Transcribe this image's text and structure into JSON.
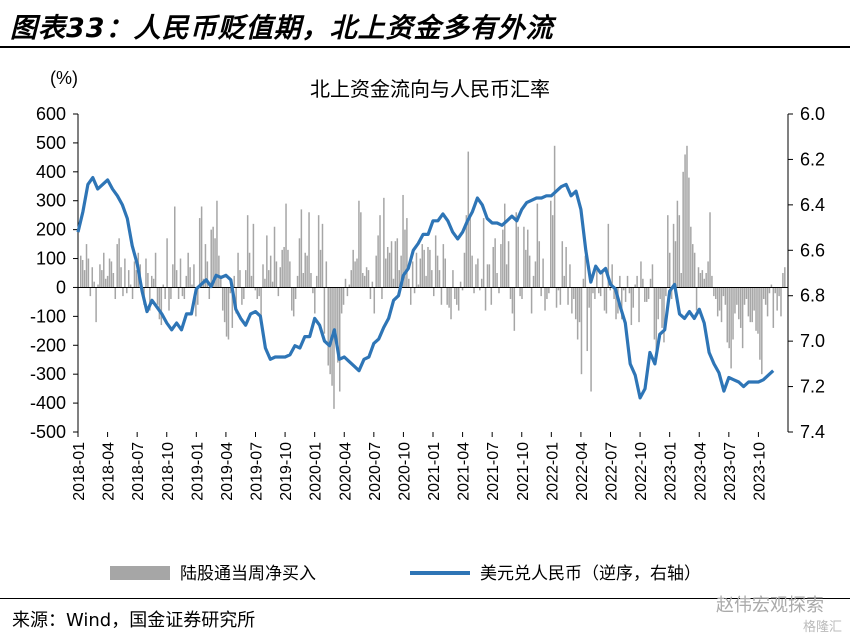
{
  "figure": {
    "title": "图表33：人民币贬值期，北上资金多有外流",
    "source": "来源：Wind，国金证券研究所",
    "watermark": "赵伟宏观探索",
    "watermark_sub": "格隆汇"
  },
  "colors": {
    "bars": "#a6a6a6",
    "line": "#2e75b6",
    "axis": "#000000"
  },
  "chart_data": {
    "type": "bar+line",
    "title": "北上资金流向与人民币汇率",
    "left_unit": "(%)",
    "left_ylim": [
      -500,
      600
    ],
    "left_ticks": [
      600,
      500,
      400,
      300,
      200,
      100,
      0,
      -100,
      -200,
      -300,
      -400,
      -500
    ],
    "right_ylim_inverted": [
      6.0,
      7.4
    ],
    "right_ticks": [
      "6.0",
      "6.2",
      "6.4",
      "6.6",
      "6.8",
      "7.0",
      "7.2",
      "7.4"
    ],
    "x_ticks": [
      "2018-01",
      "2018-04",
      "2018-07",
      "2018-10",
      "2019-01",
      "2019-04",
      "2019-07",
      "2019-10",
      "2020-01",
      "2020-04",
      "2020-07",
      "2020-10",
      "2021-01",
      "2021-04",
      "2021-07",
      "2021-10",
      "2022-01",
      "2022-04",
      "2022-07",
      "2022-10",
      "2023-01",
      "2023-04",
      "2023-07",
      "2023-10"
    ],
    "legend_position": "bottom",
    "series": [
      {
        "name": "陆股通当周净买入",
        "axis": "left",
        "kind": "bar",
        "frequency": "weekly",
        "values": [
          110,
          95,
          60,
          150,
          100,
          -30,
          70,
          20,
          -120,
          10,
          80,
          60,
          120,
          30,
          40,
          100,
          90,
          50,
          -40,
          150,
          170,
          70,
          -30,
          100,
          -20,
          60,
          10,
          -40,
          90,
          60,
          120,
          80,
          0,
          -60,
          100,
          50,
          -80,
          40,
          30,
          120,
          -60,
          -110,
          -130,
          10,
          -40,
          170,
          -80,
          -40,
          80,
          280,
          60,
          -40,
          100,
          -30,
          -40,
          40,
          120,
          70,
          10,
          80,
          -100,
          -60,
          240,
          280,
          30,
          150,
          90,
          -40,
          200,
          210,
          170,
          300,
          110,
          40,
          -80,
          -120,
          -170,
          -180,
          -20,
          -140,
          40,
          -90,
          120,
          60,
          -60,
          -40,
          60,
          250,
          120,
          40,
          220,
          -10,
          -40,
          -30,
          -100,
          80,
          30,
          180,
          60,
          110,
          20,
          210,
          90,
          -30,
          70,
          130,
          140,
          290,
          130,
          90,
          -80,
          -100,
          -40,
          40,
          170,
          270,
          50,
          120,
          110,
          260,
          50,
          -20,
          -90,
          40,
          250,
          130,
          220,
          -160,
          90,
          -270,
          -300,
          -340,
          -420,
          -180,
          -260,
          -360,
          -90,
          -60,
          30,
          -30,
          10,
          60,
          130,
          90,
          100,
          300,
          260,
          50,
          40,
          70,
          60,
          -40,
          20,
          -90,
          110,
          180,
          250,
          -40,
          310,
          100,
          140,
          120,
          160,
          30,
          160,
          170,
          60,
          110,
          320,
          200,
          240,
          30,
          -60,
          90,
          -20,
          120,
          10,
          100,
          150,
          130,
          40,
          140,
          130,
          60,
          -30,
          180,
          110,
          60,
          -60,
          150,
          100,
          -60,
          -70,
          -110,
          60,
          -40,
          -60,
          -80,
          20,
          -10,
          120,
          250,
          470,
          240,
          110,
          -20,
          80,
          100,
          -10,
          30,
          240,
          -80,
          80,
          80,
          -60,
          140,
          170,
          50,
          -20,
          150,
          200,
          290,
          80,
          160,
          -40,
          -90,
          -150,
          260,
          210,
          -30,
          -40,
          210,
          130,
          200,
          110,
          -90,
          40,
          90,
          290,
          160,
          -30,
          100,
          -80,
          -40,
          -20,
          300,
          250,
          490,
          -70,
          -10,
          -60,
          160,
          40,
          140,
          -60,
          80,
          -90,
          -40,
          -110,
          -180,
          -120,
          -300,
          30,
          110,
          -220,
          -70,
          -360,
          -20,
          -40,
          60,
          -20,
          -30,
          50,
          -80,
          -90,
          220,
          -10,
          80,
          -40,
          -110,
          -90,
          40,
          -110,
          -10,
          -50,
          40,
          -20,
          -130,
          -70,
          10,
          40,
          -120,
          90,
          30,
          -50,
          -50,
          -40,
          30,
          80,
          -180,
          -220,
          -110,
          -40,
          -140,
          -190,
          -30,
          250,
          120,
          -40,
          220,
          160,
          300,
          250,
          50,
          400,
          460,
          490,
          380,
          210,
          150,
          120,
          -80,
          70,
          50,
          60,
          30,
          50,
          90,
          260,
          40,
          -30,
          -40,
          -100,
          -80,
          -120,
          -30,
          -60,
          -190,
          -210,
          -280,
          -180,
          -90,
          -60,
          -110,
          -140,
          -210,
          -60,
          -40,
          -100,
          -120,
          -120,
          -80,
          -150,
          -160,
          -250,
          -300,
          -40,
          -60,
          -100,
          -20,
          10,
          -140,
          -20,
          -80,
          -30,
          -100,
          50,
          70
        ]
      },
      {
        "name": "美元兑人民币（逆序，右轴）",
        "axis": "right",
        "kind": "line",
        "points": [
          [
            "2018-01",
            6.52
          ],
          [
            "2018-01",
            6.43
          ],
          [
            "2018-02",
            6.31
          ],
          [
            "2018-02",
            6.28
          ],
          [
            "2018-03",
            6.33
          ],
          [
            "2018-03",
            6.31
          ],
          [
            "2018-04",
            6.29
          ],
          [
            "2018-04",
            6.33
          ],
          [
            "2018-05",
            6.36
          ],
          [
            "2018-05",
            6.4
          ],
          [
            "2018-06",
            6.46
          ],
          [
            "2018-06",
            6.58
          ],
          [
            "2018-07",
            6.66
          ],
          [
            "2018-07",
            6.78
          ],
          [
            "2018-08",
            6.87
          ],
          [
            "2018-08",
            6.82
          ],
          [
            "2018-09",
            6.85
          ],
          [
            "2018-09",
            6.88
          ],
          [
            "2018-10",
            6.92
          ],
          [
            "2018-10",
            6.95
          ],
          [
            "2018-11",
            6.92
          ],
          [
            "2018-11",
            6.95
          ],
          [
            "2018-12",
            6.88
          ],
          [
            "2018-12",
            6.88
          ],
          [
            "2019-01",
            6.77
          ],
          [
            "2019-02",
            6.73
          ],
          [
            "2019-02",
            6.76
          ],
          [
            "2019-03",
            6.71
          ],
          [
            "2019-03",
            6.72
          ],
          [
            "2019-04",
            6.71
          ],
          [
            "2019-04",
            6.73
          ],
          [
            "2019-05",
            6.86
          ],
          [
            "2019-05",
            6.9
          ],
          [
            "2019-06",
            6.93
          ],
          [
            "2019-06",
            6.88
          ],
          [
            "2019-07",
            6.87
          ],
          [
            "2019-07",
            6.89
          ],
          [
            "2019-08",
            7.03
          ],
          [
            "2019-08",
            7.08
          ],
          [
            "2019-09",
            7.07
          ],
          [
            "2019-09",
            7.07
          ],
          [
            "2019-10",
            7.07
          ],
          [
            "2019-10",
            7.06
          ],
          [
            "2019-11",
            7.02
          ],
          [
            "2019-11",
            7.03
          ],
          [
            "2019-12",
            6.98
          ],
          [
            "2019-12",
            6.98
          ],
          [
            "2020-01",
            6.9
          ],
          [
            "2020-01",
            6.93
          ],
          [
            "2020-02",
            7.0
          ],
          [
            "2020-02",
            7.02
          ],
          [
            "2020-03",
            6.95
          ],
          [
            "2020-03",
            7.08
          ],
          [
            "2020-04",
            7.07
          ],
          [
            "2020-04",
            7.09
          ],
          [
            "2020-05",
            7.11
          ],
          [
            "2020-05",
            7.13
          ],
          [
            "2020-06",
            7.08
          ],
          [
            "2020-06",
            7.07
          ],
          [
            "2020-07",
            7.01
          ],
          [
            "2020-07",
            6.99
          ],
          [
            "2020-08",
            6.94
          ],
          [
            "2020-08",
            6.9
          ],
          [
            "2020-09",
            6.82
          ],
          [
            "2020-09",
            6.8
          ],
          [
            "2020-10",
            6.71
          ],
          [
            "2020-10",
            6.68
          ],
          [
            "2020-11",
            6.6
          ],
          [
            "2020-11",
            6.57
          ],
          [
            "2020-12",
            6.53
          ],
          [
            "2020-12",
            6.53
          ],
          [
            "2021-01",
            6.47
          ],
          [
            "2021-01",
            6.47
          ],
          [
            "2021-02",
            6.44
          ],
          [
            "2021-02",
            6.47
          ],
          [
            "2021-03",
            6.52
          ],
          [
            "2021-03",
            6.55
          ],
          [
            "2021-04",
            6.52
          ],
          [
            "2021-04",
            6.47
          ],
          [
            "2021-05",
            6.43
          ],
          [
            "2021-05",
            6.37
          ],
          [
            "2021-06",
            6.4
          ],
          [
            "2021-06",
            6.46
          ],
          [
            "2021-07",
            6.48
          ],
          [
            "2021-07",
            6.48
          ],
          [
            "2021-08",
            6.49
          ],
          [
            "2021-08",
            6.47
          ],
          [
            "2021-09",
            6.45
          ],
          [
            "2021-09",
            6.47
          ],
          [
            "2021-10",
            6.42
          ],
          [
            "2021-10",
            6.39
          ],
          [
            "2021-11",
            6.38
          ],
          [
            "2021-11",
            6.37
          ],
          [
            "2021-12",
            6.37
          ],
          [
            "2021-12",
            6.36
          ],
          [
            "2022-01",
            6.36
          ],
          [
            "2022-01",
            6.34
          ],
          [
            "2022-02",
            6.32
          ],
          [
            "2022-02",
            6.31
          ],
          [
            "2022-03",
            6.36
          ],
          [
            "2022-03",
            6.34
          ],
          [
            "2022-04",
            6.42
          ],
          [
            "2022-04",
            6.6
          ],
          [
            "2022-05",
            6.74
          ],
          [
            "2022-05",
            6.67
          ],
          [
            "2022-06",
            6.7
          ],
          [
            "2022-06",
            6.68
          ],
          [
            "2022-07",
            6.75
          ],
          [
            "2022-07",
            6.77
          ],
          [
            "2022-08",
            6.85
          ],
          [
            "2022-08",
            6.92
          ],
          [
            "2022-09",
            7.1
          ],
          [
            "2022-09",
            7.15
          ],
          [
            "2022-10",
            7.25
          ],
          [
            "2022-10",
            7.21
          ],
          [
            "2022-11",
            7.05
          ],
          [
            "2022-11",
            7.1
          ],
          [
            "2022-12",
            6.97
          ],
          [
            "2022-12",
            6.95
          ],
          [
            "2023-01",
            6.78
          ],
          [
            "2023-01",
            6.75
          ],
          [
            "2023-02",
            6.88
          ],
          [
            "2023-02",
            6.9
          ],
          [
            "2023-03",
            6.87
          ],
          [
            "2023-03",
            6.9
          ],
          [
            "2023-04",
            6.86
          ],
          [
            "2023-04",
            6.92
          ],
          [
            "2023-05",
            7.05
          ],
          [
            "2023-05",
            7.1
          ],
          [
            "2023-06",
            7.14
          ],
          [
            "2023-06",
            7.22
          ],
          [
            "2023-07",
            7.16
          ],
          [
            "2023-07",
            7.17
          ],
          [
            "2023-08",
            7.18
          ],
          [
            "2023-08",
            7.2
          ],
          [
            "2023-09",
            7.18
          ],
          [
            "2023-09",
            7.18
          ],
          [
            "2023-10",
            7.18
          ],
          [
            "2023-10",
            7.17
          ],
          [
            "2023-11",
            7.15
          ],
          [
            "2023-11",
            7.13
          ]
        ]
      }
    ]
  }
}
